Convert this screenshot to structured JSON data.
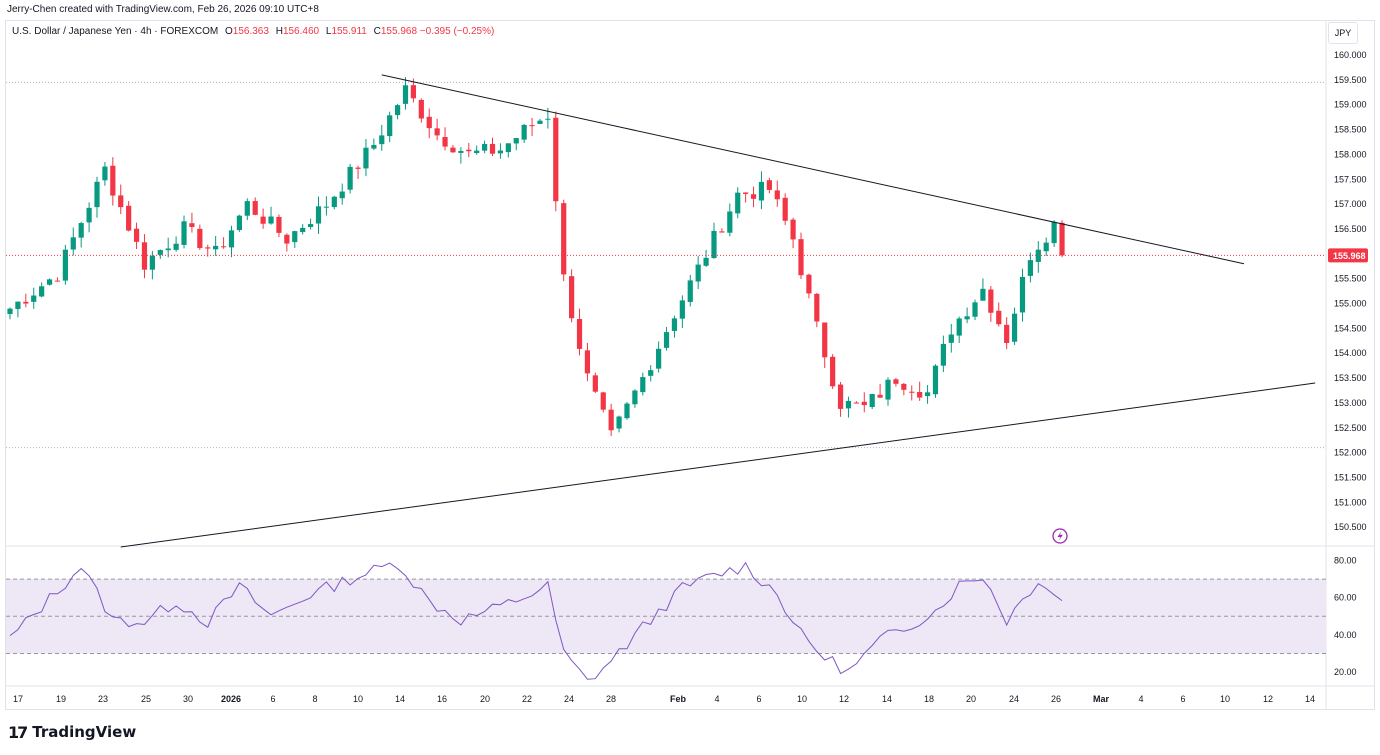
{
  "header": {
    "attribution": "Jerry-Chen created with TradingView.com, Feb 26, 2026 09:10 UTC+8"
  },
  "legend": {
    "symbol": "U.S. Dollar / Japanese Yen · 4h · FOREXCOM",
    "o_label": "O",
    "o_value": "156.363",
    "h_label": "H",
    "h_value": "156.460",
    "l_label": "L",
    "l_value": "155.911",
    "c_label": "C",
    "c_value": "155.968",
    "change": "−0.395 (−0.25%)"
  },
  "currency": "JPY",
  "brand": {
    "name": "TradingView",
    "logo": "17"
  },
  "colors": {
    "up": "#089981",
    "down": "#f23645",
    "rsi": "#7e57c2",
    "rsi_band": "#ede7f6",
    "trend": "#131722"
  },
  "chart_data": [
    {
      "type": "candlestick",
      "title": "U.S. Dollar / Japanese Yen · 4h · FOREXCOM",
      "ylim": [
        150.2,
        160.3
      ],
      "y_ticks": [
        "160.000",
        "159.500",
        "159.000",
        "158.500",
        "158.000",
        "157.500",
        "157.000",
        "156.500",
        "156.000",
        "155.500",
        "155.000",
        "154.500",
        "154.000",
        "153.500",
        "153.000",
        "152.500",
        "152.000",
        "151.500",
        "151.000",
        "150.500"
      ],
      "x_ticks": [
        "17",
        "19",
        "23",
        "25",
        "30",
        "2026",
        "6",
        "8",
        "10",
        "14",
        "16",
        "20",
        "22",
        "24",
        "28",
        "Feb",
        "4",
        "6",
        "10",
        "12",
        "14",
        "18",
        "20",
        "24",
        "26",
        "Mar",
        "4",
        "6",
        "10",
        "12",
        "14"
      ],
      "last_price": "155.968",
      "close_path": [
        [
          0,
          154.9
        ],
        [
          6,
          155.6
        ],
        [
          12,
          157.7
        ],
        [
          17,
          155.8
        ],
        [
          22,
          156.5
        ],
        [
          26,
          156.0
        ],
        [
          30,
          157.0
        ],
        [
          35,
          156.3
        ],
        [
          40,
          157.0
        ],
        [
          46,
          158.2
        ],
        [
          50,
          159.3
        ],
        [
          54,
          158.4
        ],
        [
          58,
          158.0
        ],
        [
          62,
          158.1
        ],
        [
          66,
          158.6
        ],
        [
          68,
          158.8
        ],
        [
          70,
          155.5
        ],
        [
          73,
          153.5
        ],
        [
          76,
          152.3
        ],
        [
          80,
          153.5
        ],
        [
          84,
          154.8
        ],
        [
          88,
          156.0
        ],
        [
          92,
          157.2
        ],
        [
          96,
          157.3
        ],
        [
          99,
          156.3
        ],
        [
          102,
          154.5
        ],
        [
          105,
          153.0
        ],
        [
          108,
          152.9
        ],
        [
          112,
          153.5
        ],
        [
          116,
          153.2
        ],
        [
          119,
          154.5
        ],
        [
          123,
          155.3
        ],
        [
          126,
          154.3
        ],
        [
          129,
          156.0
        ],
        [
          131,
          156.4
        ],
        [
          132,
          156.6
        ],
        [
          133,
          155.97
        ]
      ],
      "trendlines": [
        {
          "name": "upper-resistance",
          "from": {
            "bar": 47,
            "price": 159.6
          },
          "to": {
            "bar": 156,
            "price": 155.8
          }
        },
        {
          "name": "lower-support",
          "from": {
            "bar": 14,
            "price": 150.1
          },
          "to": {
            "bar": 165,
            "price": 153.4
          }
        }
      ],
      "dotted_levels": [
        159.45,
        152.1
      ]
    },
    {
      "type": "line",
      "name": "RSI",
      "ylim": [
        10,
        88
      ],
      "y_ticks": [
        "80.00",
        "60.00",
        "40.00",
        "20.00"
      ],
      "band": [
        30,
        70
      ],
      "midline": 50,
      "values_path": [
        [
          0,
          38
        ],
        [
          4,
          55
        ],
        [
          9,
          77
        ],
        [
          13,
          48
        ],
        [
          17,
          47
        ],
        [
          21,
          58
        ],
        [
          25,
          47
        ],
        [
          29,
          66
        ],
        [
          33,
          50
        ],
        [
          38,
          62
        ],
        [
          43,
          70
        ],
        [
          49,
          79
        ],
        [
          53,
          58
        ],
        [
          57,
          48
        ],
        [
          62,
          55
        ],
        [
          68,
          66
        ],
        [
          70,
          30
        ],
        [
          73,
          15
        ],
        [
          76,
          26
        ],
        [
          80,
          44
        ],
        [
          85,
          65
        ],
        [
          89,
          72
        ],
        [
          93,
          77
        ],
        [
          97,
          62
        ],
        [
          100,
          40
        ],
        [
          103,
          28
        ],
        [
          106,
          20
        ],
        [
          110,
          37
        ],
        [
          114,
          46
        ],
        [
          117,
          53
        ],
        [
          120,
          67
        ],
        [
          123,
          72
        ],
        [
          126,
          48
        ],
        [
          130,
          70
        ],
        [
          133,
          58
        ]
      ]
    }
  ]
}
